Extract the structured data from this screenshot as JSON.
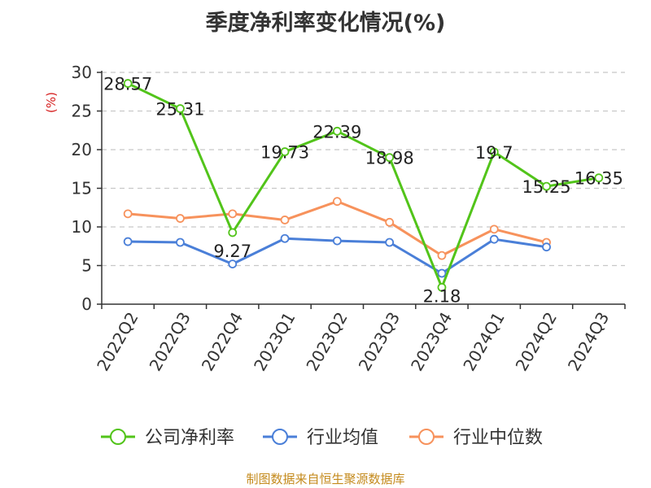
{
  "page": {
    "title": "季度净利率变化情况(%)",
    "source": "制图数据来自恒生聚源数据库"
  },
  "colors": {
    "company": "#52c41a",
    "industry_avg": "#4a7fd8",
    "industry_median": "#f7925c",
    "ylabel": "#d62020",
    "grid": "#c8c8c8",
    "source": "#c48a1c"
  },
  "chart_data": {
    "type": "line",
    "title": "季度净利率变化情况(%)",
    "xlabel": "",
    "ylabel": "(%)",
    "ylim": [
      0,
      30
    ],
    "yticks": [
      0,
      5,
      10,
      15,
      20,
      25,
      30
    ],
    "grid": true,
    "legend_position": "bottom",
    "categories": [
      "2022Q2",
      "2022Q3",
      "2022Q4",
      "2023Q1",
      "2023Q2",
      "2023Q3",
      "2023Q4",
      "2024Q1",
      "2024Q2",
      "2024Q3"
    ],
    "series": [
      {
        "name": "公司净利率",
        "color_key": "company",
        "values": [
          28.57,
          25.31,
          9.27,
          19.73,
          22.39,
          18.98,
          2.18,
          19.7,
          15.25,
          16.35
        ],
        "labels": [
          "28.57",
          "25.31",
          "9.27",
          "19.73",
          "22.39",
          "18.98",
          "2.18",
          "19.7",
          "15.25",
          "16.35"
        ]
      },
      {
        "name": "行业均值",
        "color_key": "industry_avg",
        "values": [
          8.1,
          8.0,
          5.2,
          8.5,
          8.2,
          8.0,
          4.0,
          8.4,
          7.4,
          null
        ]
      },
      {
        "name": "行业中位数",
        "color_key": "industry_median",
        "values": [
          11.7,
          11.1,
          11.7,
          10.9,
          13.3,
          10.6,
          6.3,
          9.7,
          8.0,
          null
        ]
      }
    ]
  }
}
